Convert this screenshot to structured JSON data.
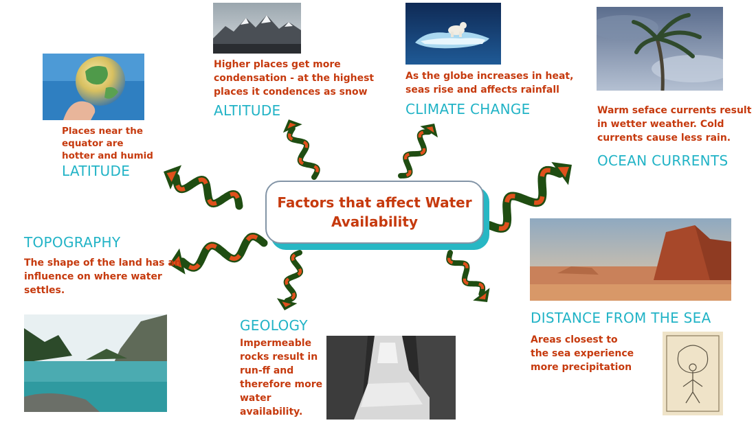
{
  "diagram": {
    "center": {
      "line1": "Factors that affect Water",
      "line2": "Availability"
    },
    "factors": {
      "latitude": {
        "title": "LATITUDE",
        "lines": [
          "Places near the",
          "equator are",
          "hotter and humid"
        ],
        "image": "globe-in-hand-photo"
      },
      "altitude": {
        "title": "ALTITUDE",
        "lines": [
          "Higher places get more",
          "condensation - at the highest",
          "places it condences as snow"
        ],
        "image": "snowy-mountains-photo"
      },
      "climate_change": {
        "title": "CLIMATE CHANGE",
        "lines": [
          "As the globe increases in heat,",
          "seas rise and affects rainfall"
        ],
        "image": "polar-bear-on-ice-photo"
      },
      "ocean_currents": {
        "title": "OCEAN CURRENTS",
        "lines": [
          "Warm seface currents result",
          "in wetter weather. Cold",
          "currents cause less rain."
        ],
        "image": "palm-tree-in-storm-photo"
      },
      "topography": {
        "title": "TOPOGRAPHY",
        "lines": [
          "The shape of the land has an",
          "influence on where water",
          "settles."
        ],
        "image": "mountain-lake-photo"
      },
      "geology": {
        "title": "GEOLOGY",
        "lines": [
          "Impermeable",
          "rocks result in",
          "run-ff and",
          "therefore more",
          "water",
          "availability."
        ],
        "image": "waterfall-photo"
      },
      "distance_from_sea": {
        "title": "DISTANCE FROM THE SEA",
        "lines": [
          "Areas closest to",
          "the sea experience",
          "more precipitation"
        ],
        "image": "desert-sketch-photo"
      }
    },
    "colors": {
      "title": "#21b3c6",
      "text": "#c63a0e",
      "arrow_dark": "#1f4d12",
      "arrow_light": "#e0501c",
      "box_shadow": "#27b7c4"
    }
  }
}
